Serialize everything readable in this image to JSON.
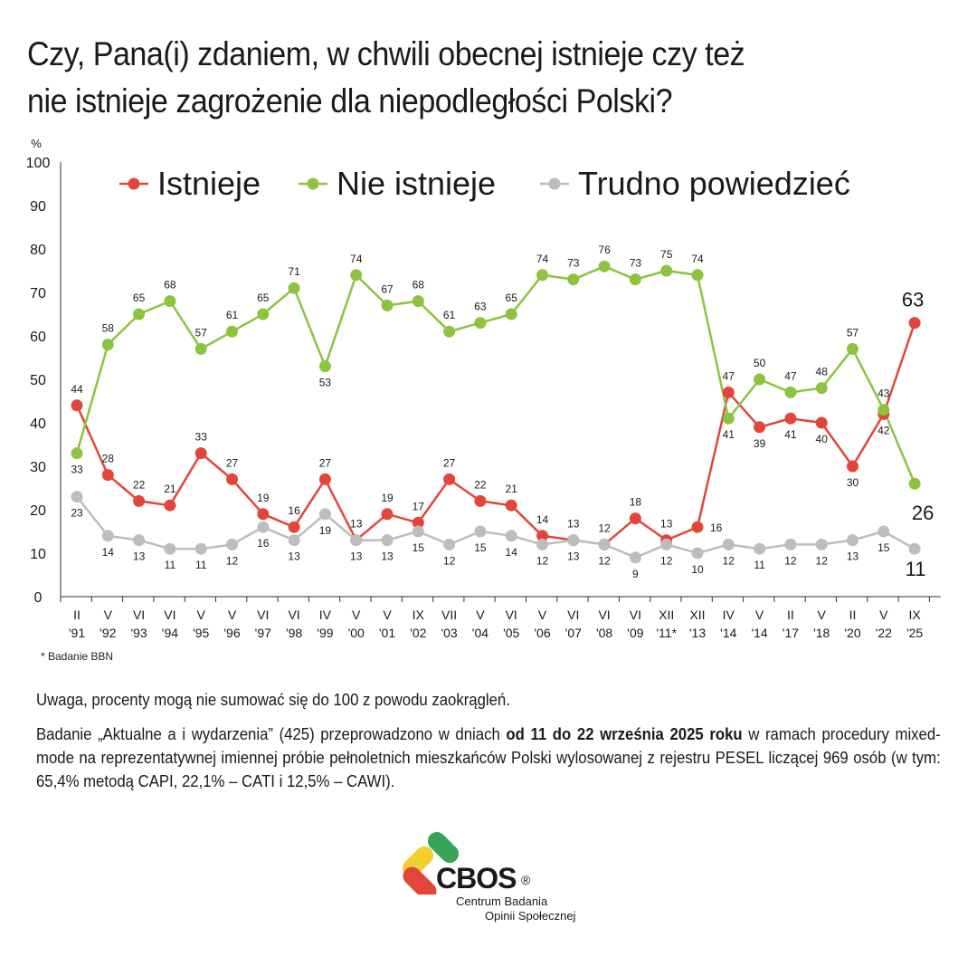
{
  "title": {
    "line1": "Czy, Pana(i) zdaniem, w chwili obecnej istnieje czy też",
    "line2": "nie istnieje zagrożenie dla niepodległości Polski?"
  },
  "footnote": "* Badanie BBN",
  "notes": {
    "note1": "Uwaga, procenty mogą nie sumować się do 100 z powodu zaokrągleń.",
    "note2_before": "Badanie „Aktualne a i wydarzenia” (425) przeprowadzono w dniach ",
    "note2_bold": "od 11 do 22 września 2025 roku",
    "note2_after": " w ramach procedury mixed-mode na reprezentatywnej imiennej próbie pełnoletnich mieszkańców Polski wylosowanej z rejestru PESEL liczącej 969 osób (w tym: 65,4% metodą CAPI, 22,1% – CATI i 12,5% – CAWI)."
  },
  "logo": {
    "name": "CBOS",
    "reg": "®",
    "sub1": "Centrum Badania",
    "sub2": "Opinii Społecznej"
  },
  "colors": {
    "istnieje": "#e2463a",
    "nie_istnieje": "#8cc43f",
    "trudno": "#bdbdbd"
  },
  "chart_data": {
    "type": "line",
    "ylabel": "%",
    "ylim": [
      0,
      100
    ],
    "yticks": [
      0,
      10,
      20,
      30,
      40,
      50,
      60,
      70,
      80,
      90,
      100
    ],
    "grid": false,
    "legend_position": "top",
    "categories": [
      {
        "top": "II",
        "bottom": "'91"
      },
      {
        "top": "V",
        "bottom": "'92"
      },
      {
        "top": "VI",
        "bottom": "'93"
      },
      {
        "top": "VI",
        "bottom": "'94"
      },
      {
        "top": "V",
        "bottom": "'95"
      },
      {
        "top": "V",
        "bottom": "'96"
      },
      {
        "top": "VI",
        "bottom": "'97"
      },
      {
        "top": "VI",
        "bottom": "'98"
      },
      {
        "top": "IV",
        "bottom": "'99"
      },
      {
        "top": "V",
        "bottom": "'00"
      },
      {
        "top": "V",
        "bottom": "'01"
      },
      {
        "top": "IX",
        "bottom": "'02"
      },
      {
        "top": "VII",
        "bottom": "'03"
      },
      {
        "top": "V",
        "bottom": "'04"
      },
      {
        "top": "VI",
        "bottom": "'05"
      },
      {
        "top": "V",
        "bottom": "'06"
      },
      {
        "top": "VI",
        "bottom": "'07"
      },
      {
        "top": "VI",
        "bottom": "'08"
      },
      {
        "top": "VI",
        "bottom": "'09"
      },
      {
        "top": "XII",
        "bottom": "'11*"
      },
      {
        "top": "XII",
        "bottom": "'13"
      },
      {
        "top": "IV",
        "bottom": "'14"
      },
      {
        "top": "V",
        "bottom": "'14"
      },
      {
        "top": "II",
        "bottom": "'17"
      },
      {
        "top": "V",
        "bottom": "'18"
      },
      {
        "top": "II",
        "bottom": "'20"
      },
      {
        "top": "V",
        "bottom": "'22"
      },
      {
        "top": "IX",
        "bottom": "'25"
      }
    ],
    "series": [
      {
        "key": "istnieje",
        "name": "Istnieje",
        "values": [
          44,
          28,
          22,
          21,
          33,
          27,
          19,
          16,
          27,
          13,
          19,
          17,
          27,
          22,
          21,
          14,
          13,
          12,
          18,
          13,
          16,
          47,
          39,
          41,
          40,
          30,
          42,
          63
        ]
      },
      {
        "key": "nie_istnieje",
        "name": "Nie istnieje",
        "values": [
          33,
          58,
          65,
          68,
          57,
          61,
          65,
          71,
          53,
          74,
          67,
          68,
          61,
          63,
          65,
          74,
          73,
          76,
          73,
          75,
          74,
          41,
          50,
          47,
          48,
          57,
          43,
          26
        ]
      },
      {
        "key": "trudno",
        "name": "Trudno powiedzieć",
        "values": [
          23,
          14,
          13,
          11,
          11,
          12,
          16,
          13,
          19,
          13,
          13,
          15,
          12,
          15,
          14,
          12,
          13,
          12,
          9,
          12,
          10,
          12,
          11,
          12,
          12,
          13,
          15,
          11
        ]
      }
    ]
  }
}
